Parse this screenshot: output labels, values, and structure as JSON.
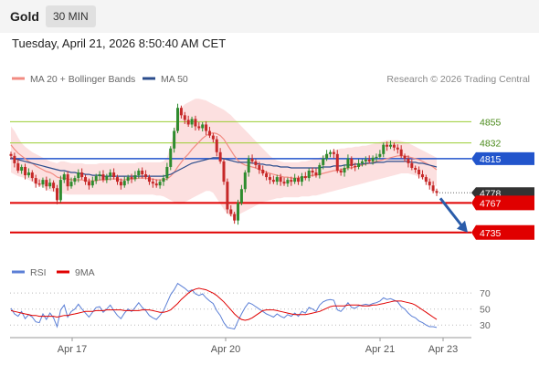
{
  "header": {
    "instrument": "Gold",
    "interval": "30 MIN"
  },
  "timestamp": "Tuesday, April 21, 2026 8:50:40 AM CET",
  "legend": {
    "items": [
      {
        "label": "MA 20 + Bollinger Bands",
        "color": "#f28b82"
      },
      {
        "label": "MA 50",
        "color": "#2b4c8c"
      }
    ],
    "credit": "Research © 2026 Trading Central"
  },
  "rsi_legend": {
    "items": [
      {
        "label": "RSI",
        "color": "#5b7fd6"
      },
      {
        "label": "9MA",
        "color": "#e00000"
      }
    ]
  },
  "colors": {
    "bull_candle": "#2e8b2e",
    "bear_candle": "#c62828",
    "support_resistance": "#e00000",
    "green_level": "#9acd32",
    "green_level_text": "#4a8a1a",
    "ma50_level": "#2255cc",
    "bollinger_fill": "#fbd5d5",
    "arrow": "#2a5caa",
    "last_price_tag": "#333333"
  },
  "chart_data": [
    {
      "type": "candlestick",
      "title": "",
      "x_tick_labels": [
        "Apr 17",
        "Apr 20",
        "Apr 21",
        "Apr 23"
      ],
      "y_range": [
        4715,
        4890
      ],
      "grid": false,
      "legend_position": "top",
      "horizontal_levels": [
        {
          "value": 4855,
          "label": "4855",
          "style": "green-line"
        },
        {
          "value": 4832,
          "label": "4832",
          "style": "green-line"
        },
        {
          "value": 4815,
          "label": "4815",
          "style": "blue-tag"
        },
        {
          "value": 4778,
          "label": "4778",
          "style": "last-price-tag"
        },
        {
          "value": 4767,
          "label": "4767",
          "style": "red-tag"
        },
        {
          "value": 4735,
          "label": "4735",
          "style": "red-tag"
        }
      ],
      "forecast": {
        "from": 4772,
        "to": 4738
      },
      "price_close": [
        4818,
        4810,
        4802,
        4806,
        4797,
        4800,
        4794,
        4788,
        4787,
        4792,
        4785,
        4789,
        4783,
        4770,
        4792,
        4798,
        4785,
        4790,
        4794,
        4800,
        4795,
        4790,
        4786,
        4791,
        4796,
        4798,
        4792,
        4796,
        4800,
        4795,
        4790,
        4786,
        4791,
        4795,
        4793,
        4797,
        4802,
        4798,
        4795,
        4790,
        4788,
        4786,
        4790,
        4794,
        4806,
        4826,
        4845,
        4870,
        4862,
        4857,
        4852,
        4858,
        4850,
        4848,
        4852,
        4845,
        4840,
        4836,
        4822,
        4812,
        4790,
        4760,
        4755,
        4748,
        4767,
        4782,
        4800,
        4815,
        4812,
        4808,
        4803,
        4799,
        4795,
        4792,
        4790,
        4795,
        4790,
        4788,
        4792,
        4790,
        4794,
        4790,
        4796,
        4794,
        4802,
        4800,
        4797,
        4808,
        4815,
        4820,
        4822,
        4820,
        4802,
        4800,
        4805,
        4815,
        4807,
        4806,
        4810,
        4812,
        4814,
        4812,
        4816,
        4817,
        4820,
        4830,
        4828,
        4830,
        4827,
        4825,
        4818,
        4815,
        4810,
        4805,
        4803,
        4798,
        4795,
        4790,
        4786,
        4780,
        4778
      ],
      "ma20": [
        4830,
        4825,
        4821,
        4818,
        4815,
        4812,
        4810,
        4807,
        4805,
        4803,
        4801,
        4800,
        4798,
        4795,
        4794,
        4794,
        4793,
        4792,
        4792,
        4792,
        4792,
        4791,
        4791,
        4791,
        4791,
        4792,
        4792,
        4792,
        4793,
        4793,
        4793,
        4792,
        4792,
        4793,
        4793,
        4793,
        4794,
        4794,
        4794,
        4793,
        4793,
        4792,
        4792,
        4792,
        4793,
        4796,
        4800,
        4806,
        4811,
        4816,
        4820,
        4825,
        4829,
        4833,
        4837,
        4840,
        4842,
        4843,
        4842,
        4840,
        4836,
        4830,
        4824,
        4818,
        4813,
        4810,
        4808,
        4807,
        4806,
        4805,
        4803,
        4802,
        4800,
        4799,
        4798,
        4797,
        4796,
        4795,
        4795,
        4794,
        4794,
        4794,
        4795,
        4795,
        4796,
        4797,
        4797,
        4798,
        4799,
        4800,
        4801,
        4802,
        4802,
        4803,
        4804,
        4805,
        4805,
        4806,
        4807,
        4808,
        4809,
        4810,
        4811,
        4812,
        4813,
        4814,
        4815,
        4816,
        4817,
        4818,
        4818,
        4818,
        4817,
        4816,
        4815,
        4814,
        4812,
        4810,
        4808,
        4806,
        4803
      ],
      "ma50": [
        4816,
        4815,
        4814,
        4813,
        4812,
        4811,
        4810,
        4809,
        4808,
        4807,
        4806,
        4805,
        4804,
        4803,
        4802,
        4802,
        4801,
        4800,
        4800,
        4799,
        4799,
        4798,
        4798,
        4797,
        4797,
        4797,
        4796,
        4796,
        4796,
        4796,
        4796,
        4796,
        4796,
        4796,
        4796,
        4796,
        4796,
        4796,
        4796,
        4796,
        4796,
        4796,
        4796,
        4796,
        4797,
        4798,
        4800,
        4802,
        4804,
        4806,
        4808,
        4810,
        4811,
        4812,
        4813,
        4814,
        4815,
        4816,
        4816,
        4816,
        4815,
        4814,
        4813,
        4812,
        4811,
        4811,
        4811,
        4811,
        4810,
        4810,
        4809,
        4809,
        4808,
        4808,
        4807,
        4807,
        4806,
        4806,
        4806,
        4805,
        4805,
        4805,
        4805,
        4805,
        4805,
        4805,
        4805,
        4805,
        4806,
        4806,
        4806,
        4807,
        4807,
        4807,
        4808,
        4808,
        4808,
        4809,
        4809,
        4809,
        4810,
        4810,
        4810,
        4811,
        4811,
        4811,
        4812,
        4812,
        4812,
        4812,
        4812,
        4812,
        4812,
        4811,
        4811,
        4810,
        4810,
        4809,
        4808,
        4807,
        4806
      ],
      "bollinger_upper": [
        4850,
        4845,
        4838,
        4832,
        4828,
        4825,
        4822,
        4820,
        4818,
        4816,
        4814,
        4812,
        4811,
        4810,
        4812,
        4812,
        4811,
        4810,
        4810,
        4810,
        4810,
        4809,
        4809,
        4809,
        4809,
        4810,
        4810,
        4810,
        4810,
        4810,
        4810,
        4810,
        4810,
        4810,
        4810,
        4810,
        4811,
        4811,
        4811,
        4811,
        4811,
        4811,
        4811,
        4812,
        4816,
        4830,
        4845,
        4862,
        4870,
        4874,
        4876,
        4878,
        4880,
        4880,
        4879,
        4878,
        4876,
        4874,
        4872,
        4870,
        4868,
        4865,
        4862,
        4858,
        4854,
        4850,
        4846,
        4842,
        4838,
        4834,
        4830,
        4826,
        4822,
        4818,
        4815,
        4813,
        4812,
        4811,
        4811,
        4811,
        4811,
        4811,
        4812,
        4812,
        4813,
        4814,
        4815,
        4816,
        4818,
        4820,
        4822,
        4824,
        4825,
        4826,
        4826,
        4827,
        4827,
        4828,
        4828,
        4829,
        4829,
        4830,
        4831,
        4832,
        4833,
        4834,
        4835,
        4835,
        4835,
        4835,
        4834,
        4833,
        4832,
        4830,
        4828,
        4826,
        4824,
        4822,
        4820,
        4818,
        4816
      ],
      "bollinger_lower": [
        4800,
        4798,
        4796,
        4795,
        4794,
        4792,
        4790,
        4788,
        4786,
        4784,
        4782,
        4780,
        4779,
        4778,
        4777,
        4777,
        4776,
        4776,
        4776,
        4776,
        4776,
        4776,
        4776,
        4776,
        4776,
        4776,
        4776,
        4776,
        4776,
        4776,
        4776,
        4776,
        4776,
        4776,
        4776,
        4776,
        4776,
        4776,
        4776,
        4776,
        4776,
        4775,
        4775,
        4774,
        4772,
        4770,
        4768,
        4766,
        4766,
        4768,
        4770,
        4772,
        4774,
        4776,
        4778,
        4780,
        4780,
        4778,
        4772,
        4766,
        4760,
        4755,
        4752,
        4752,
        4754,
        4756,
        4758,
        4760,
        4762,
        4764,
        4766,
        4768,
        4769,
        4770,
        4771,
        4772,
        4772,
        4773,
        4773,
        4773,
        4773,
        4773,
        4774,
        4774,
        4774,
        4775,
        4775,
        4776,
        4777,
        4778,
        4779,
        4780,
        4781,
        4782,
        4783,
        4784,
        4785,
        4786,
        4787,
        4788,
        4789,
        4790,
        4791,
        4792,
        4793,
        4794,
        4795,
        4796,
        4797,
        4798,
        4799,
        4799,
        4799,
        4798,
        4797,
        4795,
        4793,
        4791,
        4789,
        4787,
        4785
      ]
    },
    {
      "type": "line",
      "title": "",
      "y_tick_labels": [
        "70",
        "50",
        "30"
      ],
      "y_range": [
        20,
        85
      ],
      "reference_lines": [
        70,
        50,
        30
      ],
      "grid": false,
      "series": [
        {
          "name": "RSI",
          "values": [
            51,
            44,
            41,
            47,
            38,
            43,
            40,
            34,
            33,
            44,
            37,
            45,
            39,
            28,
            49,
            55,
            40,
            47,
            50,
            56,
            50,
            45,
            40,
            46,
            52,
            53,
            46,
            50,
            55,
            48,
            42,
            38,
            45,
            50,
            47,
            52,
            58,
            52,
            48,
            42,
            39,
            37,
            42,
            48,
            58,
            68,
            74,
            82,
            79,
            76,
            72,
            74,
            69,
            67,
            69,
            64,
            60,
            57,
            48,
            42,
            33,
            27,
            26,
            25,
            35,
            44,
            52,
            58,
            56,
            53,
            50,
            47,
            44,
            42,
            40,
            44,
            41,
            39,
            43,
            41,
            45,
            41,
            47,
            45,
            52,
            50,
            47,
            55,
            59,
            61,
            62,
            61,
            49,
            47,
            52,
            58,
            52,
            51,
            54,
            55,
            56,
            55,
            57,
            58,
            60,
            64,
            62,
            63,
            61,
            59,
            53,
            50,
            45,
            41,
            39,
            35,
            33,
            30,
            28,
            28,
            27
          ]
        },
        {
          "name": "9MA",
          "values": [
            48,
            47,
            46,
            45,
            44,
            43,
            42,
            42,
            41,
            41,
            41,
            41,
            41,
            40,
            41,
            42,
            42,
            43,
            44,
            45,
            46,
            47,
            47,
            47,
            48,
            48,
            48,
            49,
            49,
            49,
            49,
            49,
            48,
            48,
            48,
            48,
            48,
            49,
            49,
            49,
            48,
            47,
            46,
            46,
            47,
            49,
            53,
            57,
            62,
            66,
            70,
            73,
            75,
            76,
            75,
            74,
            72,
            70,
            67,
            63,
            59,
            54,
            49,
            44,
            40,
            37,
            36,
            37,
            39,
            42,
            45,
            48,
            49,
            49,
            49,
            48,
            47,
            46,
            45,
            44,
            43,
            43,
            43,
            43,
            44,
            45,
            46,
            47,
            49,
            51,
            53,
            54,
            54,
            54,
            54,
            55,
            55,
            55,
            55,
            54,
            54,
            54,
            55,
            55,
            56,
            57,
            58,
            59,
            60,
            60,
            60,
            59,
            58,
            57,
            55,
            52,
            49,
            46,
            43,
            40,
            37
          ]
        }
      ]
    }
  ]
}
